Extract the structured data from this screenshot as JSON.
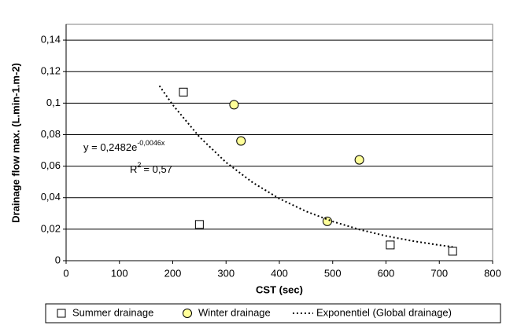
{
  "chart_data": {
    "type": "scatter",
    "xlabel": "CST (sec)",
    "ylabel": "Drainage flow max. (L.min-1.m-2)",
    "xlim": [
      0,
      800
    ],
    "xticks": [
      0,
      100,
      200,
      300,
      400,
      500,
      600,
      700,
      800
    ],
    "ylim": [
      0,
      0.15
    ],
    "yticks": [
      0,
      {
        "value": 0.02,
        "label": "0,02"
      },
      {
        "value": 0.04,
        "label": "0,04"
      },
      {
        "value": 0.06,
        "label": "0,06"
      },
      {
        "value": 0.08,
        "label": "0,08"
      },
      {
        "value": 0.1,
        "label": "0,1"
      },
      {
        "value": 0.12,
        "label": "0,12"
      },
      {
        "value": 0.14,
        "label": "0,14"
      }
    ],
    "grid": true,
    "legend": "bottom",
    "series": [
      {
        "name": "Summer drainage",
        "marker": "square",
        "color": "#ffffff",
        "x": [
          220,
          250,
          608,
          725
        ],
        "values": [
          0.107,
          0.023,
          0.01,
          0.006
        ]
      },
      {
        "name": "Winter drainage",
        "marker": "circle",
        "color": "#ffff99",
        "x": [
          315,
          328,
          490,
          550
        ],
        "values": [
          0.099,
          0.076,
          0.025,
          0.064
        ]
      },
      {
        "name": "Exponentiel (Global drainage)",
        "marker": "dotted-line",
        "color": "#000000",
        "x": [
          175,
          200,
          250,
          300,
          350,
          400,
          450,
          500,
          550,
          600,
          650,
          700,
          725
        ],
        "values": [
          0.111,
          0.0989,
          0.0786,
          0.0624,
          0.0496,
          0.0394,
          0.0313,
          0.0249,
          0.0198,
          0.0157,
          0.0125,
          0.0099,
          0.0088
        ]
      }
    ],
    "annotations": {
      "equation": "y = 0,2482e",
      "equation_exponent": "-0,0046x",
      "r2": "R",
      "r2_exponent": "2",
      "r2_value": "= 0,57"
    }
  }
}
